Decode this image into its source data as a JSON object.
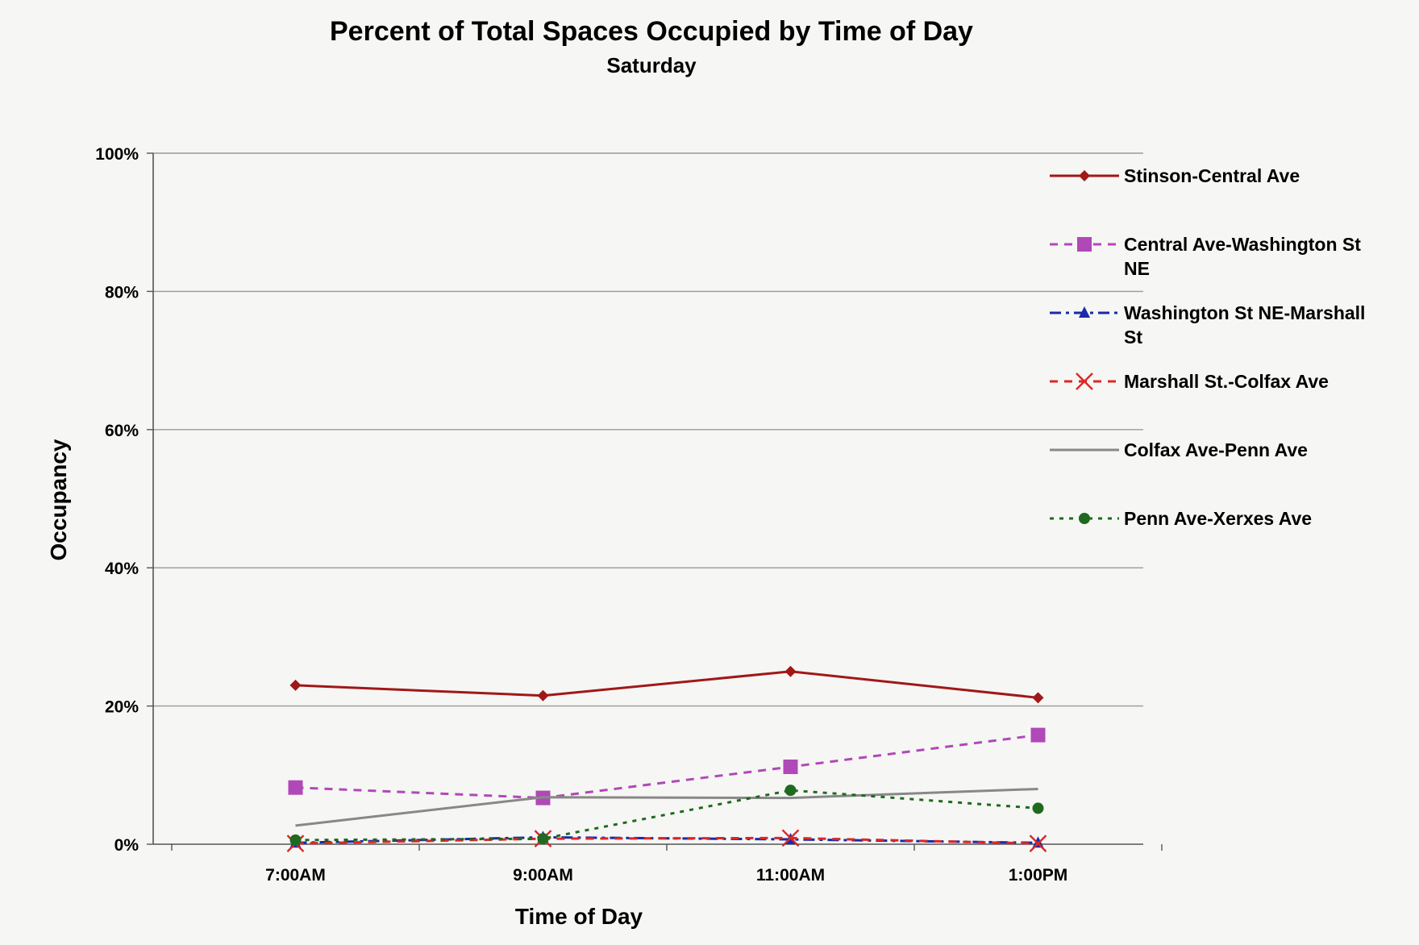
{
  "chart_data": {
    "type": "line",
    "title": "Percent of Total Spaces Occupied by Time of Day",
    "subtitle": "Saturday",
    "xlabel": "Time of Day",
    "ylabel": "Occupancy",
    "categories": [
      "7:00AM",
      "9:00AM",
      "11:00AM",
      "1:00PM"
    ],
    "y_ticks": [
      "0%",
      "20%",
      "40%",
      "60%",
      "80%",
      "100%"
    ],
    "ylim": [
      0,
      100
    ],
    "grid": true,
    "legend_position": "right",
    "series": [
      {
        "name": "Stinson-Central Ave",
        "values": [
          23.0,
          21.5,
          25.0,
          21.2
        ],
        "color": "#a01818",
        "dash": "solid",
        "marker": "diamond",
        "legend_lines": [
          "Stinson-Central Ave"
        ]
      },
      {
        "name": "Central Ave-Washington St NE",
        "values": [
          8.2,
          6.7,
          11.2,
          15.8
        ],
        "color": "#b048b8",
        "dash": "dashed",
        "marker": "square",
        "legend_lines": [
          "Central Ave-Washington St",
          "NE"
        ]
      },
      {
        "name": "Washington St NE-Marshall St",
        "values": [
          0.2,
          1.0,
          0.7,
          0.2
        ],
        "color": "#1a2aa8",
        "dash": "dashdot",
        "marker": "triangle",
        "legend_lines": [
          "Washington St NE-Marshall",
          "St"
        ]
      },
      {
        "name": "Marshall St.-Colfax Ave",
        "values": [
          0.1,
          0.8,
          0.9,
          0.1
        ],
        "color": "#d82828",
        "dash": "dashed",
        "marker": "x",
        "legend_lines": [
          "Marshall St.-Colfax Ave"
        ]
      },
      {
        "name": "Colfax Ave-Penn Ave",
        "values": [
          2.7,
          6.8,
          6.7,
          8.0
        ],
        "color": "#888888",
        "dash": "solid",
        "marker": "none",
        "legend_lines": [
          "Colfax Ave-Penn Ave"
        ]
      },
      {
        "name": "Penn Ave-Xerxes Ave",
        "values": [
          0.6,
          0.8,
          7.8,
          5.2
        ],
        "color": "#1e6a1e",
        "dash": "dotted",
        "marker": "circle",
        "legend_lines": [
          "Penn Ave-Xerxes Ave"
        ]
      }
    ]
  }
}
